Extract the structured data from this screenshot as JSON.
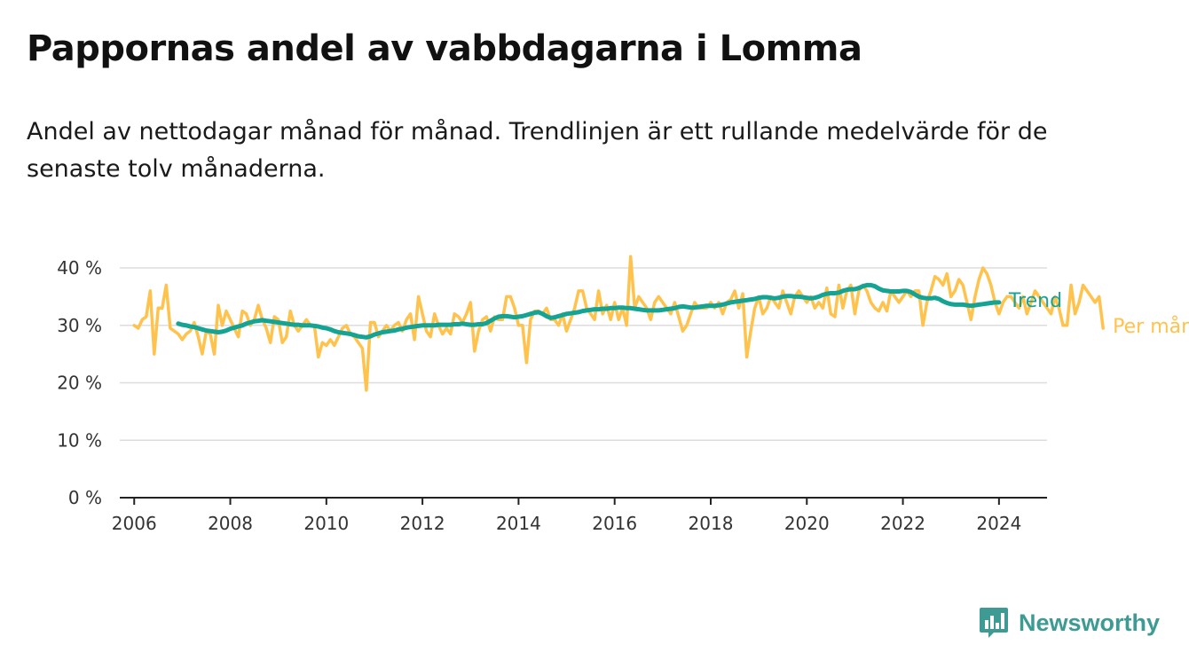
{
  "header": {
    "title": "Pappornas andel av vabbdagarna i Lomma",
    "subtitle": "Andel av nettodagar månad för månad. Trendlinjen är ett rullande medelvärde för de senaste tolv månaderna."
  },
  "brand": {
    "name": "Newsworthy",
    "icon": "newsworthy-logo-icon",
    "color": "#3d9b94"
  },
  "colors": {
    "monthly": "#ffc34d",
    "trend": "#15a394",
    "grid": "#dddddd",
    "axis": "#222222"
  },
  "chart_data": {
    "type": "line",
    "title": "Pappornas andel av vabbdagarna i Lomma",
    "xlabel": "",
    "ylabel": "",
    "xlim": [
      2005.7,
      2025.0
    ],
    "ylim": [
      0,
      40
    ],
    "y_ticks": [
      0,
      10,
      20,
      30,
      40
    ],
    "y_tick_labels": [
      "0 %",
      "10 %",
      "20 %",
      "30 %",
      "40 %"
    ],
    "x_ticks": [
      2006,
      2008,
      2010,
      2012,
      2014,
      2016,
      2018,
      2020,
      2022,
      2024
    ],
    "x_tick_labels": [
      "2006",
      "2008",
      "2010",
      "2012",
      "2014",
      "2016",
      "2018",
      "2020",
      "2022",
      "2024"
    ],
    "grid": "horizontal",
    "legend": "inline-right",
    "series": [
      {
        "name": "Per månad",
        "color": "#ffc34d",
        "x_start": "2006-01",
        "frequency": "monthly",
        "values": [
          30,
          29.5,
          31,
          31.5,
          36,
          25,
          33,
          33,
          37,
          29.5,
          29,
          28.5,
          27.5,
          28.5,
          29,
          30.5,
          28,
          25,
          29,
          28.5,
          25,
          33.5,
          30,
          32.5,
          31,
          29.5,
          28,
          32.5,
          32,
          30,
          31,
          33.5,
          31,
          29.5,
          27,
          31.5,
          31,
          27,
          28,
          32.5,
          30,
          29,
          30,
          31,
          30,
          30,
          24.5,
          27,
          26.5,
          27.5,
          26.5,
          28,
          29.5,
          30,
          28.5,
          28,
          27,
          26,
          18.7,
          30.5,
          30.5,
          28,
          29,
          30,
          29,
          30,
          30.5,
          29,
          31,
          32,
          27.5,
          35,
          32,
          29,
          28,
          32,
          30,
          28.5,
          29.5,
          28.5,
          32,
          31.5,
          30.5,
          32,
          34,
          25.5,
          29,
          31,
          31.5,
          29,
          31.5,
          31,
          31,
          35,
          35,
          33,
          30,
          30,
          23.5,
          31,
          32.5,
          32.5,
          32,
          33,
          31,
          31,
          30,
          32,
          29,
          31,
          33,
          36,
          36,
          33,
          32,
          31,
          36,
          32,
          33.5,
          31,
          34,
          31,
          33,
          30,
          42,
          33,
          35,
          34,
          33,
          31,
          34,
          35,
          34,
          33,
          32,
          34,
          31.5,
          29,
          30,
          32,
          34,
          33,
          33,
          33,
          34,
          33,
          34,
          32,
          34,
          34.5,
          36,
          33,
          35.5,
          24.5,
          29,
          33,
          35,
          32,
          33,
          35,
          34,
          33,
          36,
          34,
          32,
          35,
          36,
          35,
          34,
          35,
          33,
          34,
          33,
          36.5,
          32,
          31.5,
          37,
          33,
          36,
          37,
          32,
          36,
          37,
          36,
          34,
          33,
          32.5,
          34,
          32.5,
          36,
          35,
          34,
          35,
          36,
          35,
          36,
          36,
          30,
          34,
          36,
          38.5,
          38,
          37,
          39,
          35,
          36,
          38,
          37,
          34,
          31,
          35,
          38,
          40,
          39,
          37,
          34,
          32,
          34,
          35,
          35,
          34,
          33,
          35,
          32,
          34,
          36,
          35,
          34,
          33,
          32,
          35,
          33,
          30,
          30,
          37,
          32,
          34,
          37,
          36,
          35,
          34,
          35,
          29.5
        ]
      },
      {
        "name": "Trend",
        "color": "#15a394",
        "x_start": "2006-12",
        "frequency": "monthly",
        "values": [
          30.3,
          30.1,
          30.0,
          29.8,
          29.7,
          29.5,
          29.3,
          29.1,
          29.0,
          28.9,
          28.8,
          28.9,
          29.1,
          29.4,
          29.6,
          29.8,
          30.0,
          30.3,
          30.5,
          30.7,
          30.8,
          30.9,
          30.8,
          30.7,
          30.6,
          30.5,
          30.4,
          30.3,
          30.2,
          30.1,
          30.1,
          30.0,
          30.0,
          30.0,
          29.9,
          29.8,
          29.6,
          29.5,
          29.3,
          29.0,
          28.8,
          28.7,
          28.6,
          28.5,
          28.3,
          28.1,
          28.0,
          27.9,
          28.1,
          28.4,
          28.6,
          28.8,
          28.9,
          29.0,
          29.1,
          29.3,
          29.4,
          29.6,
          29.7,
          29.8,
          29.9,
          30.0,
          30.0,
          30.0,
          30.0,
          30.1,
          30.1,
          30.1,
          30.1,
          30.2,
          30.2,
          30.3,
          30.2,
          30.1,
          30.1,
          30.2,
          30.2,
          30.4,
          30.8,
          31.2,
          31.5,
          31.6,
          31.6,
          31.5,
          31.4,
          31.5,
          31.6,
          31.8,
          32.0,
          32.2,
          32.3,
          32.0,
          31.6,
          31.3,
          31.4,
          31.6,
          31.8,
          32.0,
          32.1,
          32.2,
          32.3,
          32.5,
          32.6,
          32.7,
          32.8,
          32.8,
          32.9,
          32.9,
          33.0,
          33.0,
          33.1,
          33.1,
          33.0,
          33.0,
          32.9,
          32.8,
          32.7,
          32.6,
          32.6,
          32.6,
          32.6,
          32.7,
          32.8,
          32.9,
          33.0,
          33.2,
          33.3,
          33.2,
          33.1,
          33.1,
          33.2,
          33.3,
          33.4,
          33.4,
          33.4,
          33.5,
          33.6,
          33.8,
          34.0,
          34.1,
          34.2,
          34.3,
          34.4,
          34.5,
          34.6,
          34.8,
          34.9,
          34.9,
          34.8,
          34.7,
          34.8,
          35.0,
          35.1,
          35.1,
          35.0,
          35.0,
          34.9,
          34.8,
          34.7,
          34.8,
          35.0,
          35.3,
          35.5,
          35.6,
          35.6,
          35.7,
          36.0,
          36.2,
          36.3,
          36.3,
          36.5,
          36.8,
          37.0,
          37.0,
          36.8,
          36.4,
          36.1,
          36.0,
          35.9,
          35.9,
          35.9,
          36.0,
          36.0,
          35.8,
          35.4,
          35.0,
          34.8,
          34.7,
          34.7,
          34.8,
          34.6,
          34.2,
          33.9,
          33.7,
          33.6,
          33.6,
          33.6,
          33.5,
          33.4,
          33.5,
          33.6,
          33.7,
          33.8,
          33.9,
          34.0,
          34.0
        ]
      }
    ]
  }
}
